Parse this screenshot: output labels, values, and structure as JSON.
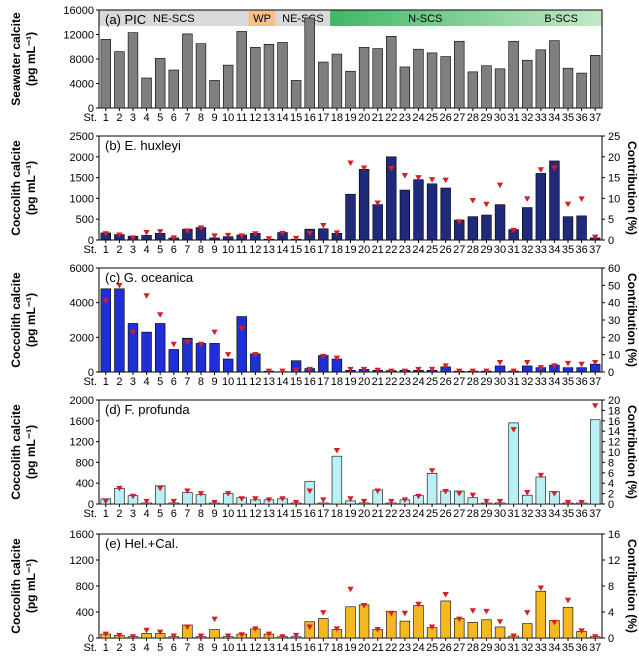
{
  "figure": {
    "stations": [
      "1",
      "2",
      "3",
      "4",
      "5",
      "6",
      "7",
      "8",
      "9",
      "10",
      "11",
      "12",
      "13",
      "14",
      "15",
      "16",
      "17",
      "18",
      "19",
      "20",
      "21",
      "22",
      "23",
      "24",
      "25",
      "26",
      "27",
      "28",
      "29",
      "30",
      "31",
      "32",
      "33",
      "34",
      "35",
      "36",
      "37"
    ],
    "station_prefix": "St.",
    "regions": [
      {
        "label": "NE-SCS",
        "from": 1,
        "to": 11,
        "color": "#d9d9d9"
      },
      {
        "label": "WP",
        "from": 12,
        "to": 13,
        "color": "#f5c08a"
      },
      {
        "label": "NE-SCS",
        "from": 14,
        "to": 17,
        "color": "#d9d9d9"
      },
      {
        "label": "N-SCS",
        "from": 18,
        "to": 31,
        "color": "#5fc47a"
      },
      {
        "label": "B-SCS",
        "from": 32,
        "to": 37,
        "color": "#c5e8c9"
      }
    ]
  },
  "chart_data": [
    {
      "type": "bar",
      "panel_label": "(a) PIC",
      "ylabel": "Seawater calcite",
      "ylabel_units": "(pg mL⁻¹)",
      "ylim": [
        0,
        16000
      ],
      "yticks": [
        0,
        4000,
        8000,
        12000,
        16000
      ],
      "bar_color": "#7f7f7f",
      "values": [
        11200,
        9200,
        12300,
        4900,
        8100,
        6200,
        12100,
        10500,
        4500,
        7000,
        12500,
        9900,
        10400,
        10700,
        4500,
        14700,
        7500,
        8800,
        6000,
        9900,
        9700,
        11700,
        6700,
        9600,
        9000,
        8400,
        10900,
        5900,
        6900,
        6400,
        10900,
        7800,
        9500,
        11000,
        6500,
        5700,
        8600
      ]
    },
    {
      "type": "bar",
      "panel_label": "(b) E. huxleyi",
      "ylabel": "Coccolith calcite",
      "ylabel_units": "(pg mL⁻¹)",
      "ylim": [
        0,
        2500
      ],
      "yticks": [
        0,
        500,
        1000,
        1500,
        2000,
        2500
      ],
      "y2label": "Contribution (%)",
      "y2lim": [
        0,
        25
      ],
      "y2ticks": [
        0,
        5,
        10,
        15,
        20,
        25
      ],
      "bar_color": "#1f2a7a",
      "values": [
        170,
        130,
        90,
        110,
        160,
        50,
        260,
        300,
        50,
        80,
        120,
        160,
        20,
        180,
        20,
        260,
        270,
        160,
        1100,
        1700,
        850,
        2000,
        1200,
        1450,
        1350,
        1250,
        480,
        560,
        600,
        850,
        250,
        780,
        1600,
        1900,
        560,
        580,
        50
      ],
      "contribution": [
        1.5,
        1.2,
        0.5,
        1.8,
        2,
        0.5,
        2.2,
        2.9,
        1,
        1.1,
        1,
        1.5,
        0.3,
        1.6,
        0.4,
        1.6,
        3.5,
        1.7,
        18.5,
        17.3,
        8.9,
        17.2,
        15.5,
        15,
        14.5,
        14.4,
        4.4,
        9.5,
        8.6,
        13.2,
        2.3,
        9.9,
        16.9,
        17.3,
        8.6,
        9.9,
        0.7
      ]
    },
    {
      "type": "bar",
      "panel_label": "(c) G. oceanica",
      "ylabel": "Coccolith calcite",
      "ylabel_units": "(pg mL⁻¹)",
      "ylim": [
        0,
        6000
      ],
      "yticks": [
        0,
        2000,
        4000,
        6000
      ],
      "y2label": "Contribution (%)",
      "y2lim": [
        0,
        60
      ],
      "y2ticks": [
        0,
        10,
        20,
        30,
        40,
        50,
        60
      ],
      "bar_color": "#1f2fd6",
      "values": [
        4800,
        4800,
        2800,
        2300,
        2800,
        1300,
        1950,
        1650,
        1650,
        750,
        3200,
        1050,
        50,
        20,
        650,
        200,
        950,
        750,
        100,
        150,
        100,
        80,
        100,
        100,
        100,
        300,
        50,
        50,
        50,
        350,
        50,
        350,
        250,
        400,
        250,
        250,
        450
      ],
      "contribution": [
        41,
        50,
        23,
        44,
        33,
        16,
        17,
        16,
        23,
        10,
        25,
        10,
        0.5,
        0.5,
        1,
        1.5,
        9,
        8,
        1.5,
        1.5,
        1,
        0.5,
        0.5,
        1.5,
        1.5,
        3.5,
        0.5,
        0.5,
        0.5,
        5.5,
        0.5,
        5.5,
        2.5,
        3.5,
        5,
        4.5,
        5.5
      ]
    },
    {
      "type": "bar",
      "panel_label": "(d) F. profunda",
      "ylabel": "Coccolith calcite",
      "ylabel_units": "(pg mL⁻¹)",
      "ylim": [
        0,
        2000
      ],
      "yticks": [
        0,
        400,
        800,
        1200,
        1600,
        2000
      ],
      "y2label": "Contribution (%)",
      "y2lim": [
        0,
        20
      ],
      "y2ticks": [
        0,
        2,
        4,
        6,
        8,
        10,
        12,
        14,
        16,
        18,
        20
      ],
      "bar_color": "#b8f0f5",
      "values": [
        100,
        300,
        160,
        20,
        350,
        20,
        220,
        180,
        20,
        200,
        120,
        80,
        80,
        100,
        20,
        430,
        20,
        920,
        60,
        20,
        270,
        20,
        80,
        160,
        590,
        250,
        250,
        120,
        20,
        20,
        1560,
        170,
        520,
        240,
        20,
        20,
        1620
      ],
      "contribution": [
        0.5,
        3,
        1.5,
        0.5,
        3,
        0.5,
        2.5,
        2,
        0.3,
        2,
        1,
        1,
        0.8,
        1,
        0.3,
        2.5,
        0.8,
        10.3,
        1,
        0.5,
        2.5,
        0.5,
        0.8,
        1.5,
        6.4,
        2.4,
        2,
        1.7,
        0.5,
        0.5,
        14.3,
        2.2,
        5.5,
        2,
        0.3,
        0.3,
        18.9
      ]
    },
    {
      "type": "bar",
      "panel_label": "(e) Hel.+Cal.",
      "ylabel": "Coccolith calcite",
      "ylabel_units": "(pg mL⁻¹)",
      "ylim": [
        0,
        1600
      ],
      "yticks": [
        0,
        400,
        800,
        1200,
        1600
      ],
      "y2label": "Contribution (%)",
      "y2lim": [
        0,
        16
      ],
      "y2ticks": [
        0,
        4,
        8,
        12,
        16
      ],
      "bar_color": "#f6b820",
      "values": [
        60,
        40,
        20,
        70,
        70,
        20,
        200,
        20,
        130,
        20,
        60,
        140,
        60,
        20,
        20,
        250,
        300,
        130,
        480,
        510,
        130,
        410,
        260,
        500,
        160,
        570,
        300,
        240,
        280,
        170,
        30,
        220,
        720,
        270,
        470,
        100,
        20
      ],
      "contribution": [
        0.6,
        0.4,
        0.2,
        1.2,
        0.9,
        0.3,
        1.7,
        0.3,
        2.9,
        0.3,
        0.5,
        1.4,
        0.6,
        0.2,
        0.4,
        1.7,
        3.9,
        1.4,
        7.5,
        5,
        1.3,
        3.8,
        3.8,
        5.2,
        1.7,
        6.7,
        2.9,
        4.2,
        4.1,
        2.5,
        0.3,
        3.9,
        7.7,
        2.4,
        5.8,
        1.1,
        0.2
      ]
    }
  ]
}
